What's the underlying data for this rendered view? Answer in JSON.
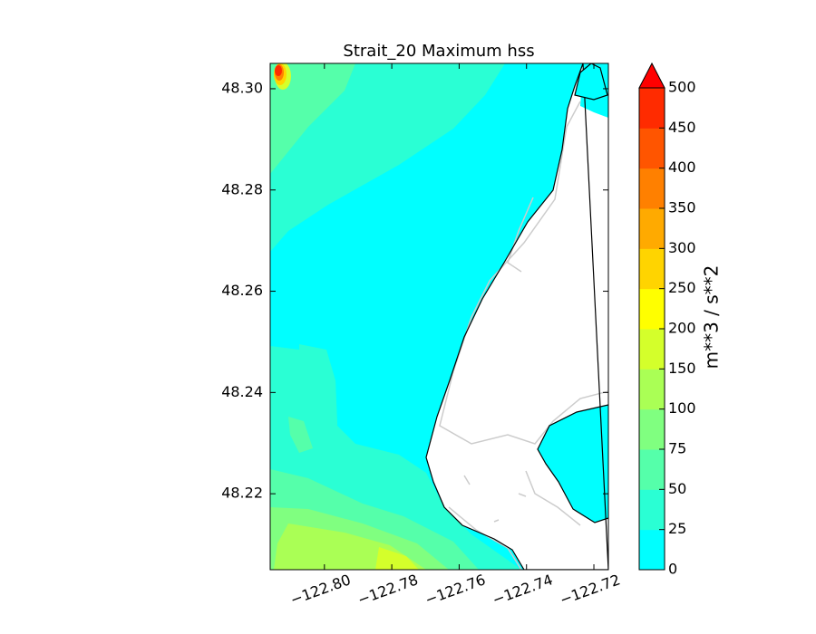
{
  "chart_data": {
    "type": "contour",
    "title": "Strait_20 Maximum hss",
    "xlim": [
      -122.8161,
      -122.7157
    ],
    "ylim": [
      48.205,
      48.305
    ],
    "xticks": [
      {
        "value": -122.8,
        "label": "−122.80"
      },
      {
        "value": -122.78,
        "label": "−122.78"
      },
      {
        "value": -122.76,
        "label": "−122.76"
      },
      {
        "value": -122.74,
        "label": "−122.74"
      },
      {
        "value": -122.72,
        "label": "−122.72"
      }
    ],
    "yticks": [
      {
        "value": 48.22,
        "label": "48.22"
      },
      {
        "value": 48.24,
        "label": "48.24"
      },
      {
        "value": 48.26,
        "label": "48.26"
      },
      {
        "value": 48.28,
        "label": "48.28"
      },
      {
        "value": 48.3,
        "label": "48.30"
      }
    ],
    "colorbar": {
      "label": "m**3 / s**2",
      "levels": [
        0,
        25,
        50,
        75,
        100,
        150,
        200,
        250,
        300,
        350,
        400,
        450,
        500
      ],
      "colors": [
        "#00ffff",
        "#2affd4",
        "#55ffaa",
        "#80ff80",
        "#aaff55",
        "#d4ff2b",
        "#ffff00",
        "#ffd400",
        "#ffaa00",
        "#ff8000",
        "#ff5500",
        "#ff2b00"
      ],
      "extend_color": "#ff0000"
    }
  }
}
